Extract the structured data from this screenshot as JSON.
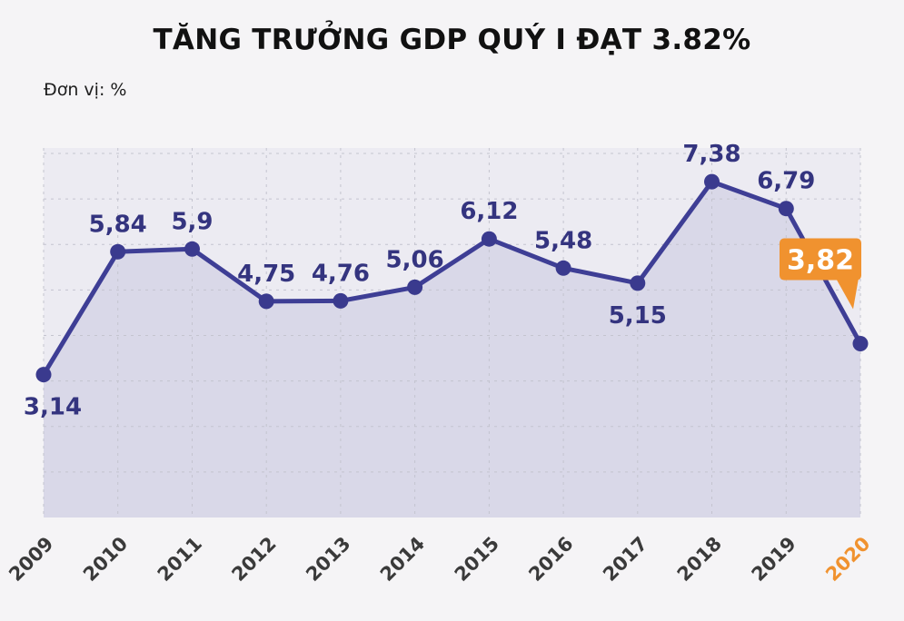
{
  "title": "TĂNG TRƯỞNG GDP QUÝ I ĐẠT 3.82%",
  "unit_label": "Đơn vị: %",
  "colors": {
    "page_bg": "#f5f4f6",
    "plot_bg": "#ecebf2",
    "area_fill": "#d9d8e8",
    "grid": "#c4c4cf",
    "line": "#3e3e95",
    "dot": "#3a3a8e",
    "label": "#34347f",
    "highlight": "#f0922f",
    "highlight_text": "#ffffff",
    "axis_label": "#3a3a3a",
    "axis_label_highlight": "#f0922f"
  },
  "chart_data": {
    "type": "area",
    "title": "TĂNG TRƯỞNG GDP QUÝ I ĐẠT 3.82%",
    "ylabel": "%",
    "categories": [
      "2009",
      "2010",
      "2011",
      "2012",
      "2013",
      "2014",
      "2015",
      "2016",
      "2017",
      "2018",
      "2019",
      "2020"
    ],
    "values": [
      3.14,
      5.84,
      5.9,
      4.75,
      4.76,
      5.06,
      6.12,
      5.48,
      5.15,
      7.38,
      6.79,
      3.82
    ],
    "value_labels": [
      "3,14",
      "5,84",
      "5,9",
      "4,75",
      "4,76",
      "5,06",
      "6,12",
      "5,48",
      "5,15",
      "7,38",
      "6,79",
      "3,82"
    ],
    "label_position": [
      "below",
      "above",
      "above",
      "above",
      "above",
      "above",
      "above",
      "above",
      "below",
      "above",
      "above",
      "callout"
    ],
    "highlight_index": 11,
    "ylim": [
      0,
      8.12
    ],
    "grid": true,
    "legend": "none"
  }
}
